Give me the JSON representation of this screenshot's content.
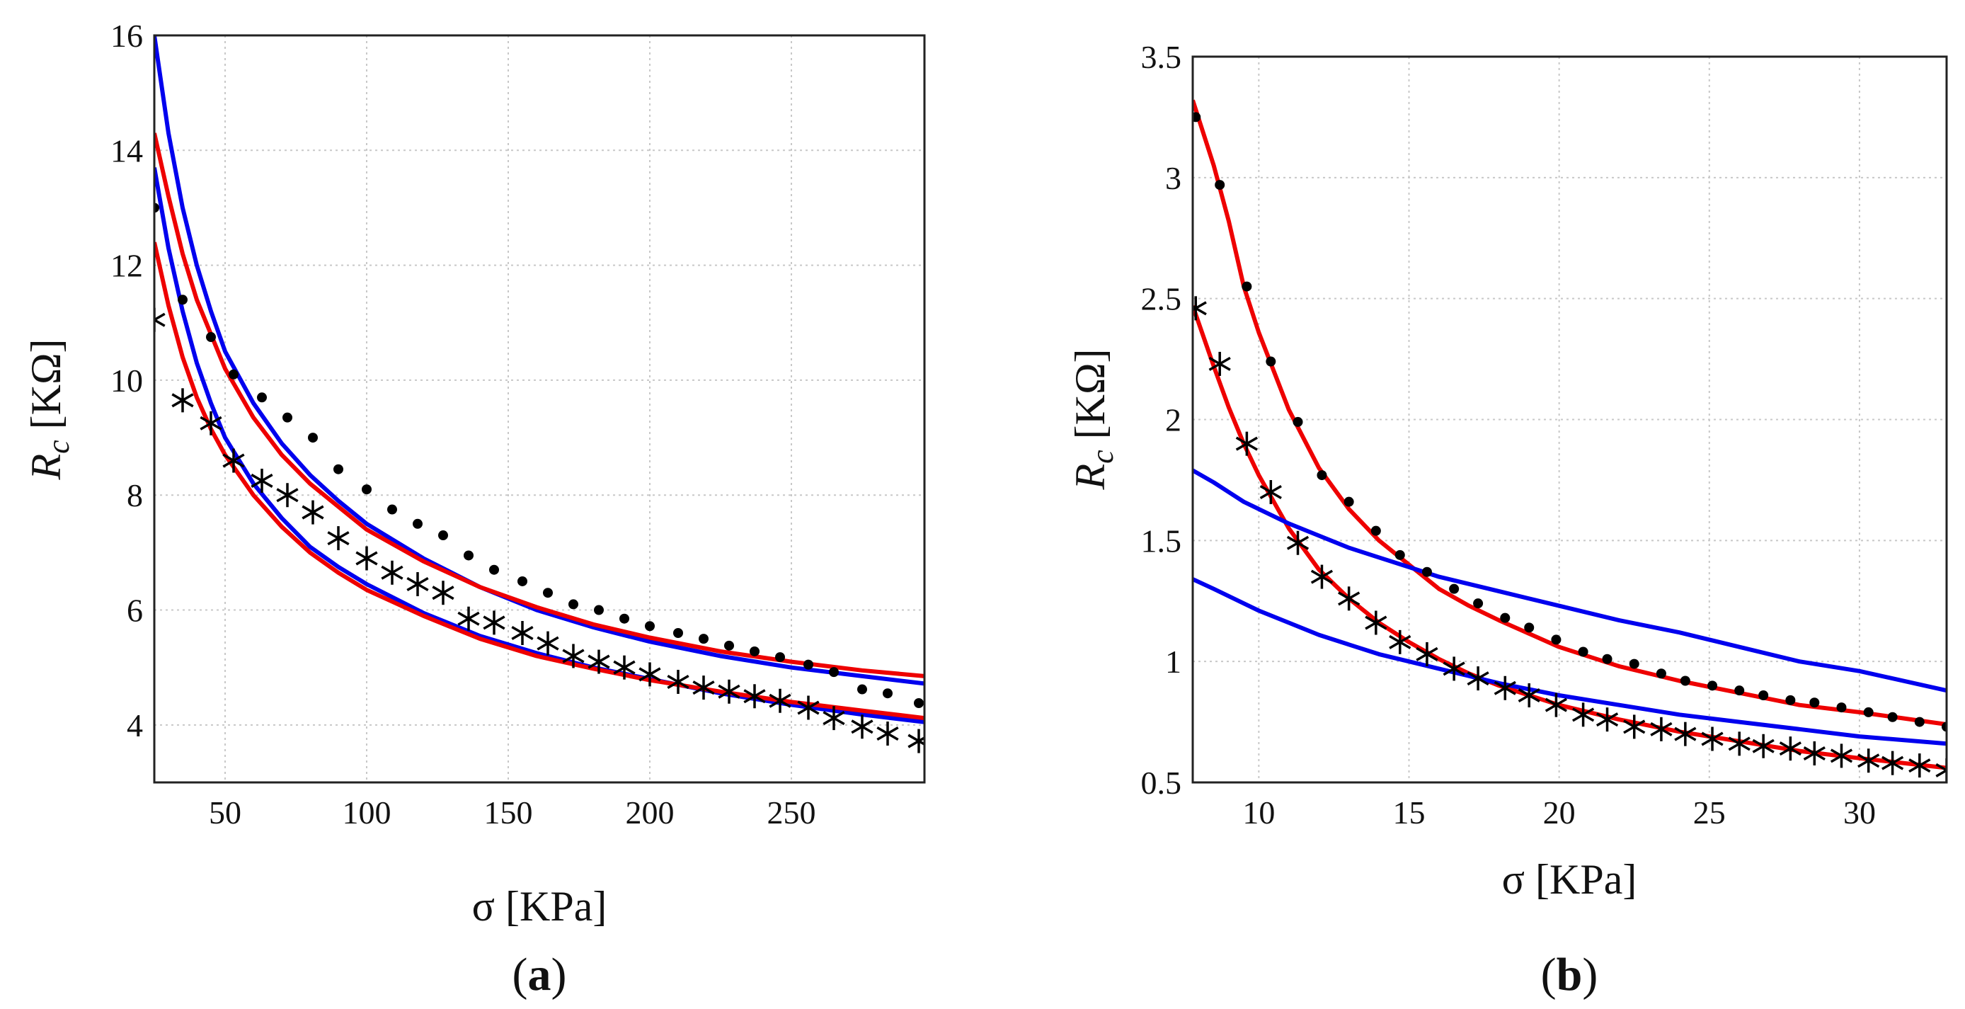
{
  "chart_data": [
    {
      "type": "line",
      "panel_label": "a",
      "xlabel": "σ [KPa]",
      "ylabel_main": "R",
      "ylabel_sub": "c",
      "ylabel_unit": "[KΩ]",
      "xlim": [
        25,
        297
      ],
      "ylim": [
        3,
        16
      ],
      "xticks": [
        50,
        100,
        150,
        200,
        250
      ],
      "yticks": [
        4,
        6,
        8,
        10,
        12,
        14,
        16
      ],
      "grid": true,
      "series": [
        {
          "name": "upper blue fit",
          "kind": "line",
          "color": "#0000ee",
          "x": [
            25,
            30,
            35,
            40,
            45,
            50,
            60,
            70,
            80,
            90,
            100,
            120,
            140,
            160,
            180,
            200,
            225,
            250,
            275,
            297
          ],
          "y": [
            16.0,
            14.3,
            13.0,
            12.0,
            11.2,
            10.5,
            9.6,
            8.9,
            8.35,
            7.9,
            7.5,
            6.9,
            6.4,
            6.0,
            5.7,
            5.45,
            5.2,
            5.0,
            4.85,
            4.72
          ]
        },
        {
          "name": "upper red fit",
          "kind": "line",
          "color": "#ee0000",
          "x": [
            25,
            30,
            35,
            40,
            45,
            50,
            60,
            70,
            80,
            90,
            100,
            120,
            140,
            160,
            180,
            200,
            225,
            250,
            275,
            297
          ],
          "y": [
            14.3,
            13.2,
            12.2,
            11.4,
            10.8,
            10.2,
            9.35,
            8.7,
            8.2,
            7.8,
            7.4,
            6.85,
            6.4,
            6.05,
            5.75,
            5.52,
            5.28,
            5.1,
            4.95,
            4.85
          ]
        },
        {
          "name": "lower blue fit",
          "kind": "line",
          "color": "#0000ee",
          "x": [
            25,
            30,
            35,
            40,
            45,
            50,
            60,
            70,
            80,
            90,
            100,
            120,
            140,
            160,
            180,
            200,
            225,
            250,
            275,
            297
          ],
          "y": [
            13.7,
            12.3,
            11.2,
            10.3,
            9.6,
            9.0,
            8.2,
            7.6,
            7.1,
            6.75,
            6.45,
            5.95,
            5.55,
            5.25,
            5.0,
            4.8,
            4.55,
            4.35,
            4.18,
            4.05
          ]
        },
        {
          "name": "lower red fit",
          "kind": "line",
          "color": "#ee0000",
          "x": [
            25,
            30,
            35,
            40,
            45,
            50,
            60,
            70,
            80,
            90,
            100,
            120,
            140,
            160,
            180,
            200,
            225,
            250,
            275,
            297
          ],
          "y": [
            12.4,
            11.3,
            10.4,
            9.7,
            9.15,
            8.7,
            8.0,
            7.45,
            7.0,
            6.65,
            6.35,
            5.9,
            5.5,
            5.2,
            4.98,
            4.78,
            4.58,
            4.4,
            4.25,
            4.12
          ]
        },
        {
          "name": "dot measurements",
          "kind": "dots",
          "color": "#000000",
          "x": [
            25,
            35,
            45,
            53,
            63,
            72,
            81,
            90,
            100,
            109,
            118,
            127,
            136,
            145,
            155,
            164,
            173,
            182,
            191,
            200,
            210,
            219,
            228,
            237,
            246,
            256,
            265,
            275,
            284,
            295
          ],
          "y": [
            13.0,
            11.4,
            10.75,
            10.1,
            9.7,
            9.35,
            9.0,
            8.45,
            8.1,
            7.75,
            7.5,
            7.3,
            6.95,
            6.7,
            6.5,
            6.3,
            6.1,
            6.0,
            5.85,
            5.72,
            5.6,
            5.5,
            5.38,
            5.28,
            5.18,
            5.05,
            4.92,
            4.62,
            4.55,
            4.38
          ]
        },
        {
          "name": "star measurements",
          "kind": "stars",
          "color": "#000000",
          "x": [
            25,
            35,
            45,
            53,
            63,
            72,
            81,
            90,
            100,
            109,
            118,
            127,
            136,
            145,
            155,
            164,
            173,
            182,
            191,
            200,
            210,
            219,
            228,
            237,
            246,
            256,
            265,
            275,
            284,
            295
          ],
          "y": [
            11.05,
            9.65,
            9.25,
            8.6,
            8.25,
            8.0,
            7.7,
            7.25,
            6.9,
            6.65,
            6.45,
            6.3,
            5.85,
            5.78,
            5.6,
            5.42,
            5.2,
            5.1,
            5.0,
            4.88,
            4.75,
            4.65,
            4.58,
            4.5,
            4.42,
            4.3,
            4.12,
            3.97,
            3.85,
            3.72
          ]
        }
      ]
    },
    {
      "type": "line",
      "panel_label": "b",
      "xlabel": "σ [KPa]",
      "ylabel_main": "R",
      "ylabel_sub": "c",
      "ylabel_unit": "[KΩ]",
      "xlim": [
        7.8,
        32.9
      ],
      "ylim": [
        0.5,
        3.5
      ],
      "xticks": [
        10,
        15,
        20,
        25,
        30
      ],
      "yticks": [
        0.5,
        1,
        1.5,
        2,
        2.5,
        3,
        3.5
      ],
      "grid": true,
      "series": [
        {
          "name": "upper red fit",
          "kind": "line",
          "color": "#ee0000",
          "x": [
            7.8,
            8.5,
            9.0,
            9.5,
            10,
            11,
            12,
            13,
            14,
            15,
            16,
            17,
            18,
            20,
            22,
            24,
            26,
            28,
            30,
            32.9
          ],
          "y": [
            3.32,
            3.05,
            2.82,
            2.55,
            2.36,
            2.04,
            1.8,
            1.63,
            1.5,
            1.4,
            1.3,
            1.23,
            1.17,
            1.06,
            0.98,
            0.92,
            0.87,
            0.82,
            0.79,
            0.74
          ]
        },
        {
          "name": "lower red fit",
          "kind": "line",
          "color": "#ee0000",
          "x": [
            7.8,
            8.5,
            9.0,
            9.5,
            10,
            11,
            12,
            13,
            14,
            15,
            16,
            17,
            18,
            20,
            22,
            24,
            26,
            28,
            30,
            32.9
          ],
          "y": [
            2.47,
            2.22,
            2.05,
            1.9,
            1.77,
            1.55,
            1.38,
            1.26,
            1.16,
            1.08,
            1.01,
            0.95,
            0.9,
            0.82,
            0.76,
            0.71,
            0.67,
            0.63,
            0.6,
            0.56
          ]
        },
        {
          "name": "upper blue fit",
          "kind": "line",
          "color": "#0000ee",
          "x": [
            7.8,
            8.5,
            9.0,
            9.5,
            10,
            11,
            12,
            13,
            14,
            15,
            16,
            17,
            18,
            20,
            22,
            24,
            26,
            28,
            30,
            32.9
          ],
          "y": [
            1.79,
            1.74,
            1.7,
            1.66,
            1.63,
            1.57,
            1.52,
            1.47,
            1.43,
            1.39,
            1.35,
            1.32,
            1.29,
            1.23,
            1.17,
            1.12,
            1.06,
            1.0,
            0.96,
            0.88
          ]
        },
        {
          "name": "lower blue fit",
          "kind": "line",
          "color": "#0000ee",
          "x": [
            7.8,
            8.5,
            9.0,
            9.5,
            10,
            11,
            12,
            13,
            14,
            15,
            16,
            17,
            18,
            20,
            22,
            24,
            26,
            28,
            30,
            32.9
          ],
          "y": [
            1.34,
            1.3,
            1.27,
            1.24,
            1.21,
            1.16,
            1.11,
            1.07,
            1.03,
            1.0,
            0.97,
            0.94,
            0.91,
            0.86,
            0.82,
            0.78,
            0.75,
            0.72,
            0.69,
            0.66
          ]
        },
        {
          "name": "dot measurements",
          "kind": "dots",
          "color": "#000000",
          "x": [
            7.9,
            8.7,
            9.6,
            10.4,
            11.3,
            12.1,
            13.0,
            13.9,
            14.7,
            15.6,
            16.5,
            17.3,
            18.2,
            19.0,
            19.9,
            20.8,
            21.6,
            22.5,
            23.4,
            24.2,
            25.1,
            26.0,
            26.8,
            27.7,
            28.5,
            29.4,
            30.3,
            31.1,
            32.0,
            32.9
          ],
          "y": [
            3.25,
            2.97,
            2.55,
            2.24,
            1.99,
            1.77,
            1.66,
            1.54,
            1.44,
            1.37,
            1.3,
            1.24,
            1.18,
            1.14,
            1.09,
            1.04,
            1.01,
            0.99,
            0.95,
            0.92,
            0.9,
            0.88,
            0.86,
            0.84,
            0.83,
            0.81,
            0.79,
            0.77,
            0.75,
            0.73
          ]
        },
        {
          "name": "star measurements",
          "kind": "stars",
          "color": "#000000",
          "x": [
            7.9,
            8.7,
            9.6,
            10.4,
            11.3,
            12.1,
            13.0,
            13.9,
            14.7,
            15.6,
            16.5,
            17.3,
            18.2,
            19.0,
            19.9,
            20.8,
            21.6,
            22.5,
            23.4,
            24.2,
            25.1,
            26.0,
            26.8,
            27.7,
            28.5,
            29.4,
            30.3,
            31.1,
            32.0,
            32.9
          ],
          "y": [
            2.46,
            2.23,
            1.9,
            1.7,
            1.49,
            1.35,
            1.26,
            1.16,
            1.08,
            1.03,
            0.97,
            0.93,
            0.89,
            0.86,
            0.82,
            0.78,
            0.76,
            0.73,
            0.72,
            0.7,
            0.68,
            0.66,
            0.65,
            0.64,
            0.62,
            0.61,
            0.59,
            0.58,
            0.57,
            0.55
          ]
        }
      ]
    }
  ]
}
